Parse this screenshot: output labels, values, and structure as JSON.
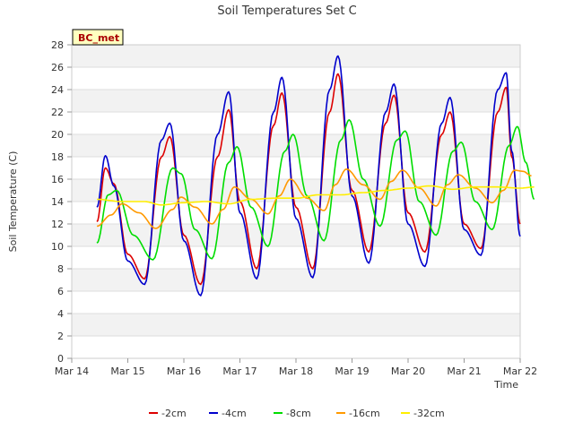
{
  "chart_data": {
    "type": "line",
    "title": "Soil Temperatures Set C",
    "xlabel": "Time",
    "ylabel": "Soil Temperature (C)",
    "site_label": "BC_met",
    "xlim": [
      "2024-03-14",
      "2024-03-22"
    ],
    "ylim": [
      0,
      28
    ],
    "x_ticks": [
      "Mar 14",
      "Mar 15",
      "Mar 16",
      "Mar 17",
      "Mar 18",
      "Mar 19",
      "Mar 20",
      "Mar 21",
      "Mar 22"
    ],
    "y_ticks": [
      0,
      2,
      4,
      6,
      8,
      10,
      12,
      14,
      16,
      18,
      20,
      22,
      24,
      26,
      28
    ],
    "grid": true,
    "legend_position": "bottom",
    "series": [
      {
        "name": "-2cm",
        "color": "#dd0000",
        "points": [
          [
            0.45,
            12.2
          ],
          [
            0.6,
            17.0
          ],
          [
            0.75,
            15.6
          ],
          [
            1.0,
            9.3
          ],
          [
            1.3,
            7.1
          ],
          [
            1.6,
            18.0
          ],
          [
            1.75,
            19.8
          ],
          [
            2.0,
            11.0
          ],
          [
            2.3,
            6.6
          ],
          [
            2.6,
            18.0
          ],
          [
            2.8,
            22.2
          ],
          [
            3.0,
            14.0
          ],
          [
            3.3,
            8.0
          ],
          [
            3.6,
            20.8
          ],
          [
            3.75,
            23.7
          ],
          [
            4.0,
            13.5
          ],
          [
            4.3,
            8.0
          ],
          [
            4.6,
            22.0
          ],
          [
            4.75,
            25.4
          ],
          [
            5.0,
            15.0
          ],
          [
            5.3,
            9.5
          ],
          [
            5.6,
            21.0
          ],
          [
            5.75,
            23.5
          ],
          [
            6.0,
            13.0
          ],
          [
            6.3,
            9.5
          ],
          [
            6.6,
            20.0
          ],
          [
            6.75,
            22.0
          ],
          [
            7.0,
            12.0
          ],
          [
            7.3,
            9.8
          ],
          [
            7.6,
            22.0
          ],
          [
            7.75,
            24.2
          ],
          [
            7.85,
            18.0
          ],
          [
            8.0,
            12.0
          ]
        ]
      },
      {
        "name": "-4cm",
        "color": "#0000cc",
        "points": [
          [
            0.45,
            13.5
          ],
          [
            0.6,
            18.1
          ],
          [
            0.75,
            15.4
          ],
          [
            1.0,
            8.7
          ],
          [
            1.3,
            6.6
          ],
          [
            1.6,
            19.5
          ],
          [
            1.75,
            21.0
          ],
          [
            2.0,
            10.5
          ],
          [
            2.3,
            5.6
          ],
          [
            2.6,
            20.0
          ],
          [
            2.8,
            23.8
          ],
          [
            3.0,
            13.0
          ],
          [
            3.3,
            7.1
          ],
          [
            3.6,
            22.0
          ],
          [
            3.75,
            25.1
          ],
          [
            4.0,
            12.5
          ],
          [
            4.3,
            7.2
          ],
          [
            4.6,
            24.0
          ],
          [
            4.75,
            27.0
          ],
          [
            5.0,
            14.5
          ],
          [
            5.3,
            8.5
          ],
          [
            5.6,
            22.0
          ],
          [
            5.75,
            24.5
          ],
          [
            6.0,
            12.0
          ],
          [
            6.3,
            8.2
          ],
          [
            6.6,
            21.0
          ],
          [
            6.75,
            23.3
          ],
          [
            7.0,
            11.5
          ],
          [
            7.3,
            9.2
          ],
          [
            7.6,
            24.0
          ],
          [
            7.75,
            25.5
          ],
          [
            7.85,
            18.5
          ],
          [
            8.0,
            10.9
          ]
        ]
      },
      {
        "name": "-8cm",
        "color": "#00dd00",
        "points": [
          [
            0.45,
            10.3
          ],
          [
            0.65,
            14.6
          ],
          [
            0.8,
            15.0
          ],
          [
            1.1,
            11.0
          ],
          [
            1.45,
            8.8
          ],
          [
            1.8,
            17.0
          ],
          [
            1.95,
            16.5
          ],
          [
            2.2,
            11.5
          ],
          [
            2.5,
            8.9
          ],
          [
            2.8,
            17.5
          ],
          [
            2.95,
            18.9
          ],
          [
            3.2,
            13.5
          ],
          [
            3.5,
            10.0
          ],
          [
            3.8,
            18.5
          ],
          [
            3.95,
            20.0
          ],
          [
            4.2,
            14.5
          ],
          [
            4.5,
            10.5
          ],
          [
            4.8,
            19.5
          ],
          [
            4.95,
            21.3
          ],
          [
            5.2,
            16.0
          ],
          [
            5.5,
            11.8
          ],
          [
            5.8,
            19.5
          ],
          [
            5.95,
            20.3
          ],
          [
            6.2,
            14.0
          ],
          [
            6.5,
            11.0
          ],
          [
            6.8,
            18.5
          ],
          [
            6.95,
            19.3
          ],
          [
            7.2,
            14.0
          ],
          [
            7.5,
            11.5
          ],
          [
            7.8,
            19.0
          ],
          [
            7.95,
            20.7
          ],
          [
            8.1,
            17.5
          ],
          [
            8.25,
            14.2
          ]
        ]
      },
      {
        "name": "-16cm",
        "color": "#ff9900",
        "points": [
          [
            0.45,
            11.8
          ],
          [
            0.7,
            12.8
          ],
          [
            0.9,
            13.8
          ],
          [
            1.2,
            13.0
          ],
          [
            1.5,
            11.6
          ],
          [
            1.8,
            13.3
          ],
          [
            1.95,
            14.4
          ],
          [
            2.2,
            13.5
          ],
          [
            2.5,
            12.0
          ],
          [
            2.7,
            13.3
          ],
          [
            2.9,
            15.3
          ],
          [
            3.2,
            14.2
          ],
          [
            3.5,
            12.9
          ],
          [
            3.7,
            14.5
          ],
          [
            3.9,
            16.0
          ],
          [
            4.2,
            14.3
          ],
          [
            4.5,
            13.2
          ],
          [
            4.7,
            15.5
          ],
          [
            4.9,
            16.9
          ],
          [
            5.2,
            15.5
          ],
          [
            5.5,
            14.2
          ],
          [
            5.7,
            15.8
          ],
          [
            5.9,
            16.8
          ],
          [
            6.2,
            15.2
          ],
          [
            6.5,
            13.6
          ],
          [
            6.7,
            15.5
          ],
          [
            6.9,
            16.4
          ],
          [
            7.2,
            15.2
          ],
          [
            7.5,
            13.9
          ],
          [
            7.7,
            15.0
          ],
          [
            7.9,
            16.8
          ],
          [
            8.05,
            16.7
          ],
          [
            8.2,
            16.3
          ]
        ]
      },
      {
        "name": "-32cm",
        "color": "#ffee00",
        "points": [
          [
            0.45,
            14.2
          ],
          [
            0.9,
            14.0
          ],
          [
            1.3,
            14.0
          ],
          [
            1.6,
            13.7
          ],
          [
            2.0,
            13.9
          ],
          [
            2.4,
            14.0
          ],
          [
            2.8,
            13.8
          ],
          [
            3.2,
            14.2
          ],
          [
            3.6,
            14.3
          ],
          [
            4.0,
            14.3
          ],
          [
            4.4,
            14.6
          ],
          [
            4.8,
            14.6
          ],
          [
            5.2,
            14.8
          ],
          [
            5.6,
            15.0
          ],
          [
            6.0,
            15.2
          ],
          [
            6.4,
            15.4
          ],
          [
            6.8,
            15.1
          ],
          [
            7.2,
            15.3
          ],
          [
            7.6,
            15.3
          ],
          [
            8.0,
            15.2
          ],
          [
            8.25,
            15.3
          ]
        ]
      }
    ]
  }
}
